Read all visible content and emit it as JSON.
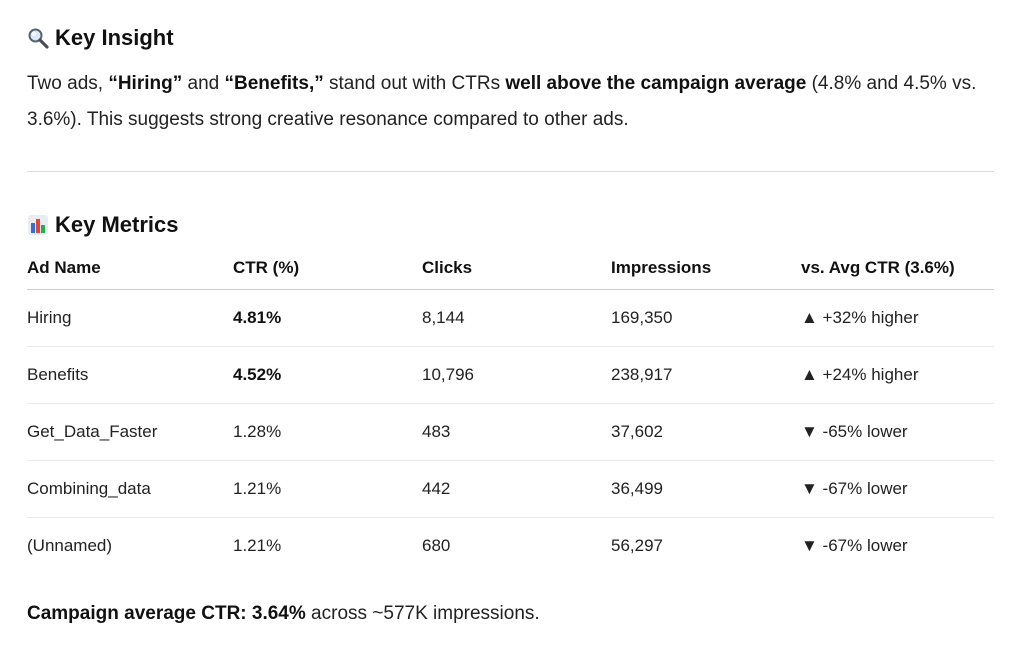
{
  "insight": {
    "icon": "magnifying-glass-icon",
    "title": "Key Insight",
    "p1": "Two ads, ",
    "hiring_quote": "“Hiring”",
    "p2": " and ",
    "benefits_quote": "“Benefits,”",
    "p3": " stand out with CTRs ",
    "emphasis": "well above the campaign average",
    "p4": " (4.8% and 4.5% vs. 3.6%). This suggests strong creative resonance compared to other ads."
  },
  "metrics": {
    "icon": "bar-chart-icon",
    "title": "Key Metrics",
    "headers": [
      "Ad Name",
      "CTR (%)",
      "Clicks",
      "Impressions",
      "vs. Avg CTR (3.6%)"
    ],
    "rows": [
      {
        "name": "Hiring",
        "ctr": "4.81%",
        "clicks": "8,144",
        "impressions": "169,350",
        "vs": "▲ +32% higher"
      },
      {
        "name": "Benefits",
        "ctr": "4.52%",
        "clicks": "10,796",
        "impressions": "238,917",
        "vs": "▲ +24% higher"
      },
      {
        "name": "Get_Data_Faster",
        "ctr": "1.28%",
        "clicks": "483",
        "impressions": "37,602",
        "vs": "▼ -65% lower"
      },
      {
        "name": "Combining_data",
        "ctr": "1.21%",
        "clicks": "442",
        "impressions": "36,499",
        "vs": "▼ -67% lower"
      },
      {
        "name": "(Unnamed)",
        "ctr": "1.21%",
        "clicks": "680",
        "impressions": "56,297",
        "vs": "▼ -67% lower"
      }
    ]
  },
  "footer": {
    "bold": "Campaign average CTR: 3.64%",
    "rest": " across ~577K impressions."
  },
  "colors": {
    "bar_blue": "#2f6fd6",
    "bar_red": "#e0453a",
    "bar_green": "#2fa84f"
  }
}
